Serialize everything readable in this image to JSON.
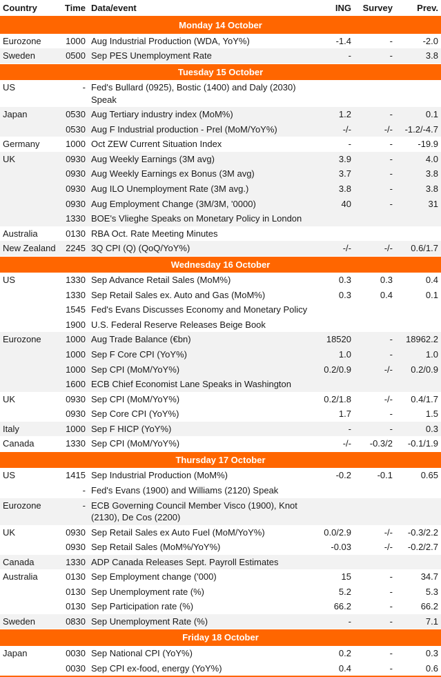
{
  "columns": {
    "country": "Country",
    "time": "Time",
    "event": "Data/event",
    "ing": "ING",
    "survey": "Survey",
    "prev": "Prev."
  },
  "colors": {
    "accent": "#ff6600",
    "header_text": "#ffffff",
    "row_alt_bg": "#f2f2f2",
    "text": "#1a1a1a",
    "bg": "#ffffff"
  },
  "days": [
    {
      "label": "Monday 14 October",
      "groups": [
        {
          "shade": false,
          "rows": [
            {
              "country": "Eurozone",
              "time": "1000",
              "event": "Aug Industrial Production (WDA, YoY%)",
              "ing": "-1.4",
              "survey": "-",
              "prev": "-2.0"
            }
          ]
        },
        {
          "shade": true,
          "rows": [
            {
              "country": "Sweden",
              "time": "0500",
              "event": "Sep PES Unemployment Rate",
              "ing": "-",
              "survey": "-",
              "prev": "3.8"
            }
          ]
        }
      ]
    },
    {
      "label": "Tuesday 15 October",
      "groups": [
        {
          "shade": false,
          "rows": [
            {
              "country": "US",
              "time": "-",
              "event": "Fed's Bullard (0925), Bostic (1400) and Daly (2030) Speak",
              "ing": "",
              "survey": "",
              "prev": ""
            }
          ]
        },
        {
          "shade": true,
          "rows": [
            {
              "country": "Japan",
              "time": "0530",
              "event": "Aug Tertiary industry index (MoM%)",
              "ing": "1.2",
              "survey": "-",
              "prev": "0.1"
            },
            {
              "country": "",
              "time": "0530",
              "event": "Aug F Industrial production - Prel (MoM/YoY%)",
              "ing": "-/-",
              "survey": "-/-",
              "prev": "-1.2/-4.7"
            }
          ]
        },
        {
          "shade": false,
          "rows": [
            {
              "country": "Germany",
              "time": "1000",
              "event": "Oct ZEW Current Situation Index",
              "ing": "-",
              "survey": "-",
              "prev": "-19.9"
            }
          ]
        },
        {
          "shade": true,
          "rows": [
            {
              "country": "UK",
              "time": "0930",
              "event": "Aug Weekly Earnings (3M avg)",
              "ing": "3.9",
              "survey": "-",
              "prev": "4.0"
            },
            {
              "country": "",
              "time": "0930",
              "event": "Aug Weekly Earnings ex Bonus (3M avg)",
              "ing": "3.7",
              "survey": "-",
              "prev": "3.8"
            },
            {
              "country": "",
              "time": "0930",
              "event": "Aug ILO Unemployment Rate (3M avg.)",
              "ing": "3.8",
              "survey": "-",
              "prev": "3.8"
            },
            {
              "country": "",
              "time": "0930",
              "event": "Aug Employment Change (3M/3M, '0000)",
              "ing": "40",
              "survey": "-",
              "prev": "31"
            },
            {
              "country": "",
              "time": "1330",
              "event": "BOE's Vlieghe Speaks on Monetary Policy in London",
              "ing": "",
              "survey": "",
              "prev": ""
            }
          ]
        },
        {
          "shade": false,
          "rows": [
            {
              "country": "Australia",
              "time": "0130",
              "event": "RBA Oct. Rate Meeting Minutes",
              "ing": "",
              "survey": "",
              "prev": ""
            }
          ]
        },
        {
          "shade": true,
          "rows": [
            {
              "country": "New Zealand",
              "time": "2245",
              "event": "3Q CPI (Q) (QoQ/YoY%)",
              "ing": "-/-",
              "survey": "-/-",
              "prev": "0.6/1.7"
            }
          ]
        }
      ]
    },
    {
      "label": "Wednesday 16 October",
      "groups": [
        {
          "shade": false,
          "rows": [
            {
              "country": "US",
              "time": "1330",
              "event": "Sep Advance Retail Sales (MoM%)",
              "ing": "0.3",
              "survey": "0.3",
              "prev": "0.4"
            },
            {
              "country": "",
              "time": "1330",
              "event": "Sep Retail Sales ex. Auto and Gas (MoM%)",
              "ing": "0.3",
              "survey": "0.4",
              "prev": "0.1"
            },
            {
              "country": "",
              "time": "1545",
              "event": "Fed's Evans Discusses Economy and Monetary Policy",
              "ing": "",
              "survey": "",
              "prev": ""
            },
            {
              "country": "",
              "time": "1900",
              "event": "U.S. Federal Reserve Releases Beige Book",
              "ing": "",
              "survey": "",
              "prev": ""
            }
          ]
        },
        {
          "shade": true,
          "rows": [
            {
              "country": "Eurozone",
              "time": "1000",
              "event": "Aug Trade Balance (€bn)",
              "ing": "18520",
              "survey": "-",
              "prev": "18962.2"
            },
            {
              "country": "",
              "time": "1000",
              "event": "Sep F Core CPI (YoY%)",
              "ing": "1.0",
              "survey": "-",
              "prev": "1.0"
            },
            {
              "country": "",
              "time": "1000",
              "event": "Sep CPI (MoM/YoY%)",
              "ing": "0.2/0.9",
              "survey": "-/-",
              "prev": "0.2/0.9"
            },
            {
              "country": "",
              "time": "1600",
              "event": "ECB Chief Economist Lane Speaks in Washington",
              "ing": "",
              "survey": "",
              "prev": ""
            }
          ]
        },
        {
          "shade": false,
          "rows": [
            {
              "country": "UK",
              "time": "0930",
              "event": "Sep CPI (MoM/YoY%)",
              "ing": "0.2/1.8",
              "survey": "-/-",
              "prev": "0.4/1.7"
            },
            {
              "country": "",
              "time": "0930",
              "event": "Sep Core CPI (YoY%)",
              "ing": "1.7",
              "survey": "-",
              "prev": "1.5"
            }
          ]
        },
        {
          "shade": true,
          "rows": [
            {
              "country": "Italy",
              "time": "1000",
              "event": "Sep F HICP (YoY%)",
              "ing": "-",
              "survey": "-",
              "prev": "0.3"
            }
          ]
        },
        {
          "shade": false,
          "rows": [
            {
              "country": "Canada",
              "time": "1330",
              "event": "Sep CPI (MoM/YoY%)",
              "ing": "-/-",
              "survey": "-0.3/2",
              "prev": "-0.1/1.9"
            }
          ]
        }
      ]
    },
    {
      "label": "Thursday 17 October",
      "groups": [
        {
          "shade": false,
          "rows": [
            {
              "country": "US",
              "time": "1415",
              "event": "Sep Industrial Production (MoM%)",
              "ing": "-0.2",
              "survey": "-0.1",
              "prev": "0.65"
            },
            {
              "country": "",
              "time": "-",
              "event": "Fed's Evans (1900) and Williams (2120) Speak",
              "ing": "",
              "survey": "",
              "prev": ""
            }
          ]
        },
        {
          "shade": true,
          "rows": [
            {
              "country": "Eurozone",
              "time": "-",
              "event": "ECB Governing Council Member Visco (1900), Knot (2130), De Cos (2200)",
              "ing": "",
              "survey": "",
              "prev": ""
            }
          ]
        },
        {
          "shade": false,
          "rows": [
            {
              "country": "UK",
              "time": "0930",
              "event": "Sep Retail Sales ex Auto Fuel (MoM/YoY%)",
              "ing": "0.0/2.9",
              "survey": "-/-",
              "prev": "-0.3/2.2"
            },
            {
              "country": "",
              "time": "0930",
              "event": "Sep Retail Sales (MoM%/YoY%)",
              "ing": "-0.03",
              "survey": "-/-",
              "prev": "-0.2/2.7"
            }
          ]
        },
        {
          "shade": true,
          "rows": [
            {
              "country": "Canada",
              "time": "1330",
              "event": "ADP Canada Releases Sept. Payroll Estimates",
              "ing": "",
              "survey": "",
              "prev": ""
            }
          ]
        },
        {
          "shade": false,
          "rows": [
            {
              "country": "Australia",
              "time": "0130",
              "event": "Sep Employment change ('000)",
              "ing": "15",
              "survey": "-",
              "prev": "34.7"
            },
            {
              "country": "",
              "time": "0130",
              "event": "Sep Unemployment rate (%)",
              "ing": "5.2",
              "survey": "-",
              "prev": "5.3"
            },
            {
              "country": "",
              "time": "0130",
              "event": "Sep Participation rate (%)",
              "ing": "66.2",
              "survey": "-",
              "prev": "66.2"
            }
          ]
        },
        {
          "shade": true,
          "rows": [
            {
              "country": "Sweden",
              "time": "0830",
              "event": "Sep Unemployment Rate (%)",
              "ing": "-",
              "survey": "-",
              "prev": "7.1"
            }
          ]
        }
      ]
    },
    {
      "label": "Friday 18 October",
      "groups": [
        {
          "shade": false,
          "rows": [
            {
              "country": "Japan",
              "time": "0030",
              "event": "Sep National CPI (YoY%)",
              "ing": "0.2",
              "survey": "-",
              "prev": "0.3"
            },
            {
              "country": "",
              "time": "0030",
              "event": "Sep CPI ex-food, energy (YoY%)",
              "ing": "0.4",
              "survey": "-",
              "prev": "0.6"
            }
          ]
        }
      ]
    }
  ]
}
